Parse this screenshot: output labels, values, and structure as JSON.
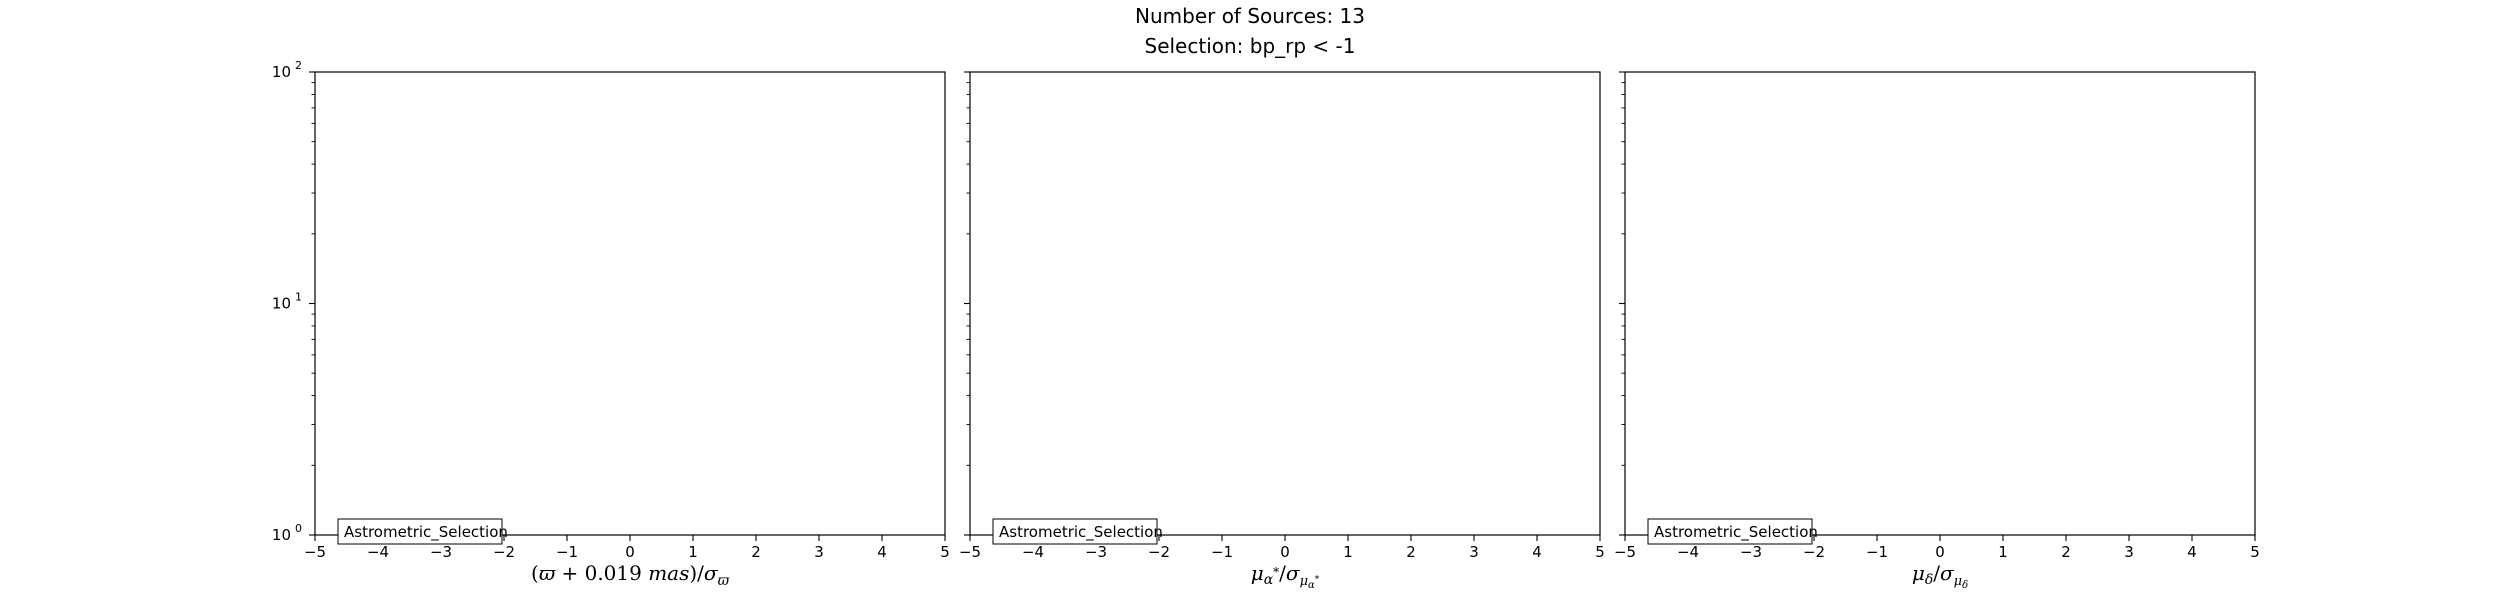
{
  "figure": {
    "title_line1": "Number of Sources: 13",
    "title_line2": "Selection: bp_rp < -1"
  },
  "chart_data": [
    {
      "type": "bar",
      "title": "",
      "xlabel": "(ϖ + 0.019 mas)/σϖ",
      "ylabel": "",
      "xlim": [
        -5,
        5
      ],
      "ylim": [
        1,
        100
      ],
      "yscale": "log",
      "x_ticks": [
        "−5",
        "−4",
        "−3",
        "−2",
        "−1",
        "0",
        "1",
        "2",
        "3",
        "4",
        "5"
      ],
      "y_ticks": [
        {
          "value": 1,
          "base": "10",
          "exp": "0"
        },
        {
          "value": 10,
          "base": "10",
          "exp": "1"
        },
        {
          "value": 100,
          "base": "10",
          "exp": "2"
        }
      ],
      "y_tick_labels_shown": true,
      "legend": {
        "label": "Astrometric_Selection",
        "location": "lower-left"
      },
      "series": [
        {
          "name": "Astrometric_Selection",
          "values": []
        }
      ],
      "grid": false
    },
    {
      "type": "bar",
      "title": "",
      "xlabel": "μα*/σμα*",
      "ylabel": "",
      "xlim": [
        -5,
        5
      ],
      "ylim": [
        1,
        100
      ],
      "yscale": "log",
      "x_ticks": [
        "−5",
        "−4",
        "−3",
        "−2",
        "−1",
        "0",
        "1",
        "2",
        "3",
        "4",
        "5"
      ],
      "y_ticks": [
        {
          "value": 1,
          "base": "10",
          "exp": "0"
        },
        {
          "value": 10,
          "base": "10",
          "exp": "1"
        },
        {
          "value": 100,
          "base": "10",
          "exp": "2"
        }
      ],
      "y_tick_labels_shown": false,
      "legend": {
        "label": "Astrometric_Selection",
        "location": "lower-left"
      },
      "series": [
        {
          "name": "Astrometric_Selection",
          "values": []
        }
      ],
      "grid": false
    },
    {
      "type": "bar",
      "title": "",
      "xlabel": "μδ/σμδ",
      "ylabel": "",
      "xlim": [
        -5,
        5
      ],
      "ylim": [
        1,
        100
      ],
      "yscale": "log",
      "x_ticks": [
        "−5",
        "−4",
        "−3",
        "−2",
        "−1",
        "0",
        "1",
        "2",
        "3",
        "4",
        "5"
      ],
      "y_ticks": [
        {
          "value": 1,
          "base": "10",
          "exp": "0"
        },
        {
          "value": 10,
          "base": "10",
          "exp": "1"
        },
        {
          "value": 100,
          "base": "10",
          "exp": "2"
        }
      ],
      "y_tick_labels_shown": false,
      "legend": {
        "label": "Astrometric_Selection",
        "location": "lower-left"
      },
      "series": [
        {
          "name": "Astrometric_Selection",
          "values": []
        }
      ],
      "grid": false
    }
  ]
}
